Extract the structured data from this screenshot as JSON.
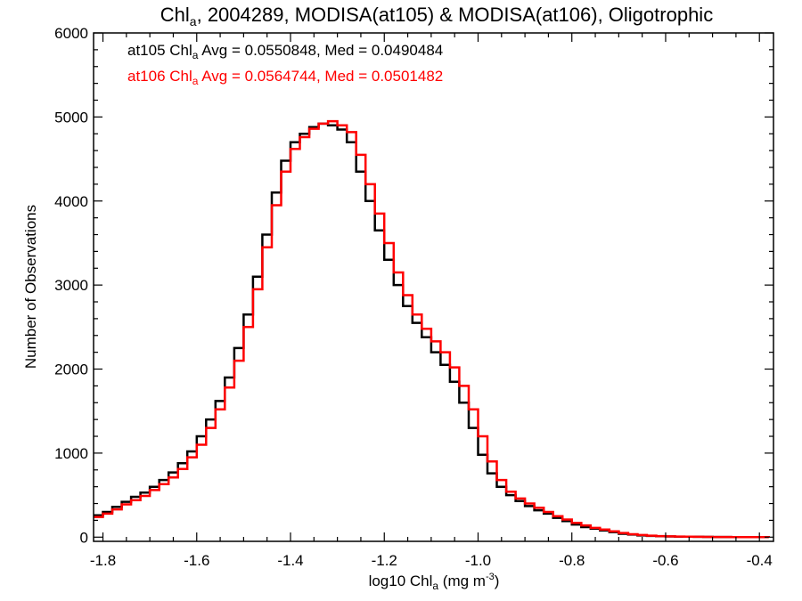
{
  "chart_data": {
    "type": "line",
    "title": {
      "prefix": "Chl",
      "sub": "a",
      "rest": ", 2004289, MODISA(at105) & MODISA(at106), Oligotrophic"
    },
    "xlabel": {
      "prefix": "log10 Chl",
      "sub": "a",
      "mid": " (mg m",
      "sup": "-3",
      "end": ")"
    },
    "ylabel": "Number of Observations",
    "xlim": [
      -1.82,
      -0.37
    ],
    "ylim": [
      -50,
      6000
    ],
    "xticks": [
      -1.8,
      -1.6,
      -1.4,
      -1.2,
      -1.0,
      -0.8,
      -0.6,
      -0.4
    ],
    "xtick_labels": [
      "-1.8",
      "-1.6",
      "-1.4",
      "-1.2",
      "-1.0",
      "-0.8",
      "-0.6",
      "-0.4"
    ],
    "yticks": [
      0,
      1000,
      2000,
      3000,
      4000,
      5000,
      6000
    ],
    "ytick_labels": [
      "0",
      "1000",
      "2000",
      "3000",
      "4000",
      "5000",
      "6000"
    ],
    "grid": false,
    "legend_placement": "top-left",
    "annotations": [
      {
        "prefix": "at105 Chl",
        "sub": "a",
        "rest": " Avg = 0.0550848, Med = 0.0490484",
        "color": "#000000"
      },
      {
        "prefix": "at106 Chl",
        "sub": "a",
        "rest": " Avg = 0.0564744, Med = 0.0501482",
        "color": "#ff0000"
      }
    ],
    "series": [
      {
        "name": "at105",
        "color": "#000000",
        "x": [
          -1.82,
          -1.8,
          -1.78,
          -1.76,
          -1.74,
          -1.72,
          -1.7,
          -1.68,
          -1.66,
          -1.64,
          -1.62,
          -1.6,
          -1.58,
          -1.56,
          -1.54,
          -1.52,
          -1.5,
          -1.48,
          -1.46,
          -1.44,
          -1.42,
          -1.4,
          -1.38,
          -1.36,
          -1.34,
          -1.32,
          -1.3,
          -1.28,
          -1.26,
          -1.24,
          -1.22,
          -1.2,
          -1.18,
          -1.16,
          -1.14,
          -1.12,
          -1.1,
          -1.08,
          -1.06,
          -1.04,
          -1.02,
          -1.0,
          -0.98,
          -0.96,
          -0.94,
          -0.92,
          -0.9,
          -0.88,
          -0.86,
          -0.84,
          -0.82,
          -0.8,
          -0.78,
          -0.76,
          -0.74,
          -0.72,
          -0.7,
          -0.68,
          -0.66,
          -0.64,
          -0.62,
          -0.6,
          -0.58,
          -0.56,
          -0.54,
          -0.52,
          -0.5,
          -0.48,
          -0.46,
          -0.44,
          -0.42,
          -0.4,
          -0.38
        ],
        "y": [
          260,
          300,
          360,
          420,
          480,
          530,
          600,
          680,
          770,
          880,
          1020,
          1200,
          1400,
          1620,
          1900,
          2250,
          2650,
          3100,
          3600,
          4100,
          4480,
          4700,
          4800,
          4880,
          4920,
          4900,
          4850,
          4700,
          4350,
          4000,
          3650,
          3300,
          3000,
          2750,
          2550,
          2380,
          2200,
          2050,
          1850,
          1600,
          1300,
          980,
          760,
          600,
          500,
          430,
          370,
          320,
          280,
          230,
          190,
          150,
          120,
          100,
          80,
          60,
          40,
          30,
          20,
          15,
          10,
          8,
          6,
          5,
          4,
          3,
          2,
          2,
          1,
          1,
          1,
          1,
          0
        ]
      },
      {
        "name": "at106",
        "color": "#ff0000",
        "x": [
          -1.82,
          -1.8,
          -1.78,
          -1.76,
          -1.74,
          -1.72,
          -1.7,
          -1.68,
          -1.66,
          -1.64,
          -1.62,
          -1.6,
          -1.58,
          -1.56,
          -1.54,
          -1.52,
          -1.5,
          -1.48,
          -1.46,
          -1.44,
          -1.42,
          -1.4,
          -1.38,
          -1.36,
          -1.34,
          -1.32,
          -1.3,
          -1.28,
          -1.26,
          -1.24,
          -1.22,
          -1.2,
          -1.18,
          -1.16,
          -1.14,
          -1.12,
          -1.1,
          -1.08,
          -1.06,
          -1.04,
          -1.02,
          -1.0,
          -0.98,
          -0.96,
          -0.94,
          -0.92,
          -0.9,
          -0.88,
          -0.86,
          -0.84,
          -0.82,
          -0.8,
          -0.78,
          -0.76,
          -0.74,
          -0.72,
          -0.7,
          -0.68,
          -0.66,
          -0.64,
          -0.62,
          -0.6,
          -0.58,
          -0.56,
          -0.54,
          -0.52,
          -0.5,
          -0.48,
          -0.46,
          -0.44,
          -0.42,
          -0.4,
          -0.38
        ],
        "y": [
          240,
          280,
          330,
          390,
          440,
          490,
          560,
          630,
          710,
          810,
          950,
          1100,
          1300,
          1520,
          1780,
          2100,
          2500,
          2950,
          3450,
          3950,
          4350,
          4620,
          4760,
          4860,
          4920,
          4950,
          4900,
          4820,
          4550,
          4200,
          3850,
          3500,
          3150,
          2880,
          2650,
          2480,
          2330,
          2200,
          2020,
          1800,
          1520,
          1200,
          900,
          680,
          540,
          460,
          400,
          350,
          300,
          250,
          210,
          170,
          140,
          110,
          90,
          70,
          50,
          35,
          25,
          18,
          12,
          9,
          7,
          5,
          4,
          3,
          2,
          2,
          1,
          1,
          1,
          1,
          0
        ]
      }
    ]
  }
}
